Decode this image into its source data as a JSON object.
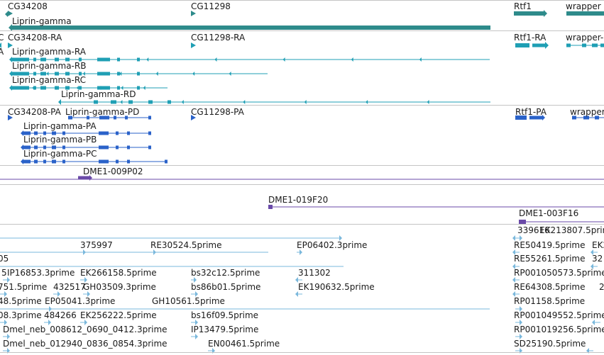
{
  "colors": {
    "gene": "#2e8b8b",
    "mrna": "#1f9fb4",
    "protein": "#2a62c9",
    "bac": "#6a4aa8",
    "est": "#7ab8dc",
    "separator": "#c4c4c4"
  },
  "genes": [
    "CG34208",
    "CG11298",
    "Rtf1",
    "wrapper",
    "Liprin-gamma"
  ],
  "transcripts": [
    "CG34208-RA",
    "CG11298-RA",
    "Rtf1-RA",
    "wrapper-",
    "Liprin-gamma-RA",
    "Liprin-gamma-RB",
    "Liprin-gamma-RC",
    "Liprin-gamma-RD"
  ],
  "proteins": [
    "CG34208-PA",
    "Liprin-gamma-PD",
    "CG11298-PA",
    "Rtf1-PA",
    "wrapper",
    "Liprin-gamma-PA",
    "Liprin-gamma-PB",
    "Liprin-gamma-PC"
  ],
  "bacs": [
    "DME1-009P02",
    "DME1-019F20",
    "DME1-003F16"
  ],
  "ests": [
    "339616",
    "EK213807.5prime",
    "375997",
    "RE30524.5prime",
    "EP06402.3prime",
    "RE50419.5prime",
    "EK2",
    "05",
    "RE55261.5prime",
    "32",
    "5",
    "IP16853.3prime",
    "EK266158.5prime",
    "bs32c12.5prime",
    "311302",
    "RP001050573.5prime",
    "751.5prime",
    "432517",
    "GH03509.3prime",
    "bs86b01.5prime",
    "EK190632.5prime",
    "RE64308.5prime",
    "2",
    "48.5prime",
    "EP05041.3prime",
    "GH10561.5prime",
    "RP01158.5prime",
    "08.3prime",
    "484266",
    "EK256222.5prime",
    "bs16f09.5prime",
    "RP001049552.5prime",
    "Dmel_neb_008612_0690_0412.3prime",
    "IP13479.5prime",
    "RP001019256.5prime",
    "Dmel_neb_012940_0836_0854.3prime",
    "EN00461.5prime",
    "SD25190.5prime"
  ]
}
